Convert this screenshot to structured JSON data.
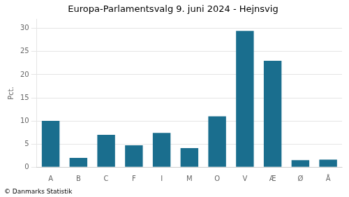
{
  "chart_data": {
    "type": "bar",
    "title": "Europa-Parlamentsvalg 9. juni 2024 - Hejnsvig",
    "ylabel": "Pct.",
    "annotations": [
      "© Danmarks Statistik"
    ],
    "categories": [
      "A",
      "B",
      "C",
      "F",
      "I",
      "M",
      "O",
      "V",
      "Æ",
      "Ø",
      "Å"
    ],
    "values": [
      10.0,
      2.0,
      7.0,
      4.7,
      7.4,
      4.1,
      11.0,
      29.5,
      23.0,
      1.5,
      1.6
    ],
    "color": "#1a6e8e",
    "ylim": [
      0,
      32
    ],
    "yticks": [
      0,
      5,
      10,
      15,
      20,
      25,
      30
    ],
    "grid": true
  }
}
